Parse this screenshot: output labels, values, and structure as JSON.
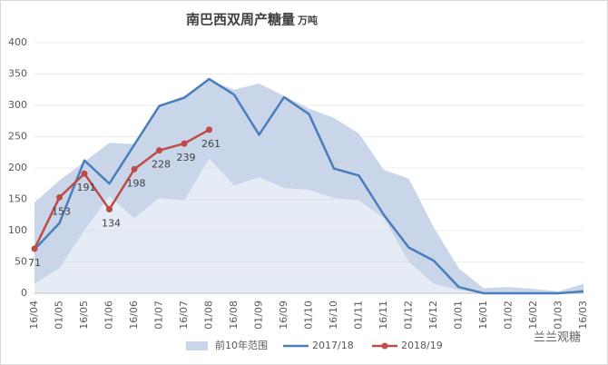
{
  "chart_data": {
    "type": "line",
    "title": "南巴西双周产糖量",
    "unit": "万吨",
    "watermark": "兰兰观糖",
    "categories": [
      "16/04",
      "01/05",
      "16/05",
      "01/06",
      "16/06",
      "01/07",
      "16/07",
      "01/08",
      "16/08",
      "01/09",
      "16/09",
      "01/10",
      "16/10",
      "01/11",
      "16/11",
      "01/12",
      "16/12",
      "01/01",
      "16/01",
      "01/02",
      "16/02",
      "01/03",
      "16/03"
    ],
    "ylim": [
      0,
      400
    ],
    "yticks": [
      0,
      50,
      100,
      150,
      200,
      250,
      300,
      350,
      400
    ],
    "grid": true,
    "legend": "bottom",
    "series": [
      {
        "name": "前10年范围",
        "type": "range",
        "color": "#c9d6ea",
        "low_color": "#e6ecf5",
        "low": [
          15,
          40,
          100,
          155,
          120,
          152,
          148,
          215,
          172,
          185,
          168,
          165,
          152,
          148,
          120,
          50,
          15,
          5,
          0,
          0,
          0,
          0,
          0
        ],
        "high": [
          145,
          180,
          210,
          240,
          238,
          300,
          315,
          340,
          325,
          335,
          315,
          295,
          280,
          255,
          197,
          183,
          105,
          40,
          8,
          10,
          7,
          3,
          15
        ]
      },
      {
        "name": "2017/18",
        "color": "#4a7ebb",
        "values": [
          70,
          112,
          212,
          175,
          237,
          299,
          312,
          342,
          317,
          253,
          313,
          286,
          199,
          188,
          125,
          73,
          52,
          10,
          0,
          0,
          0,
          0,
          3
        ]
      },
      {
        "name": "2018/19",
        "color": "#be4b48",
        "show_labels": true,
        "values": [
          71,
          153,
          191,
          134,
          198,
          228,
          239,
          261,
          null,
          null,
          null,
          null,
          null,
          null,
          null,
          null,
          null,
          null,
          null,
          null,
          null,
          null,
          null
        ]
      }
    ]
  }
}
